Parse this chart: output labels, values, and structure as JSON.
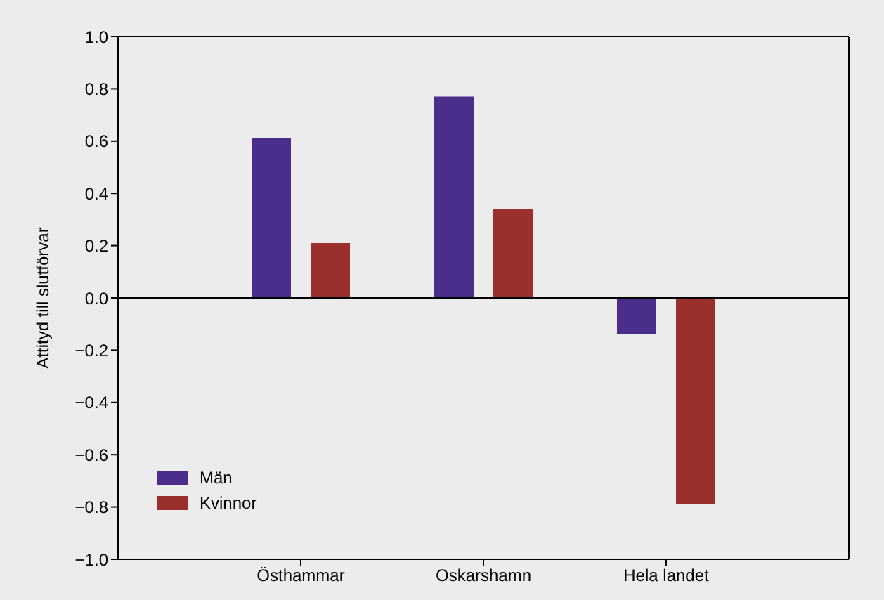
{
  "chart_data": {
    "type": "bar",
    "ylabel": "Attityd till slutförvar",
    "categories": [
      "Östhammar",
      "Oskarshamn",
      "Hela landet"
    ],
    "series": [
      {
        "name": "Män",
        "color": "#4b2d8c",
        "values": [
          0.61,
          0.77,
          -0.14
        ]
      },
      {
        "name": "Kvinnor",
        "color": "#9b2f2b",
        "values": [
          0.21,
          0.34,
          -0.79
        ]
      }
    ],
    "ylim": [
      -1.0,
      1.0
    ],
    "yticks": [
      {
        "value": -1,
        "label": "−1.0"
      },
      {
        "value": -0.8,
        "label": "−0.8"
      },
      {
        "value": -0.6,
        "label": "−0.6"
      },
      {
        "value": -0.4,
        "label": "−0.4"
      },
      {
        "value": -0.2,
        "label": "−0.2"
      },
      {
        "value": 0,
        "label": "0.0"
      },
      {
        "value": 0.2,
        "label": "0.2"
      },
      {
        "value": 0.4,
        "label": "0.4"
      },
      {
        "value": 0.6,
        "label": "0.6"
      },
      {
        "value": 0.8,
        "label": "0.8"
      },
      {
        "value": 1,
        "label": "1.0"
      }
    ],
    "ref_lines": [
      {
        "axis": "y",
        "value": 0,
        "color": "#000000"
      }
    ],
    "grid": false,
    "legend": "bottom left"
  }
}
